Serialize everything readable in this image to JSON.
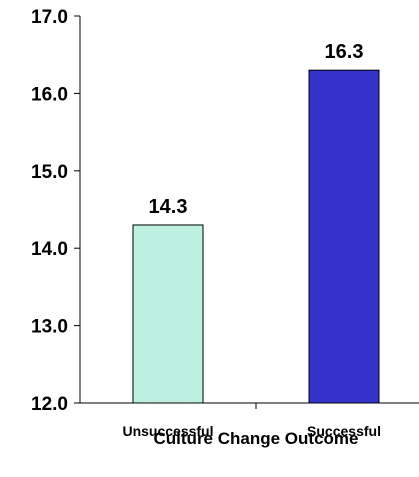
{
  "chart_data": {
    "type": "bar",
    "categories": [
      "Unsuccessful",
      "Successful"
    ],
    "values": [
      14.3,
      16.3
    ],
    "data_labels": [
      "14.3",
      "16.3"
    ],
    "xlabel": "Culture Change Outcome",
    "ylabel": "",
    "ylim": [
      12.0,
      17.0
    ],
    "yticks": [
      12.0,
      13.0,
      14.0,
      15.0,
      16.0,
      17.0
    ],
    "ytick_labels": [
      "12.0",
      "13.0",
      "14.0",
      "15.0",
      "16.0",
      "17.0"
    ],
    "grid": false,
    "legend": "none",
    "bar_colors": [
      "#BDF0E0",
      "#3333CC"
    ]
  }
}
